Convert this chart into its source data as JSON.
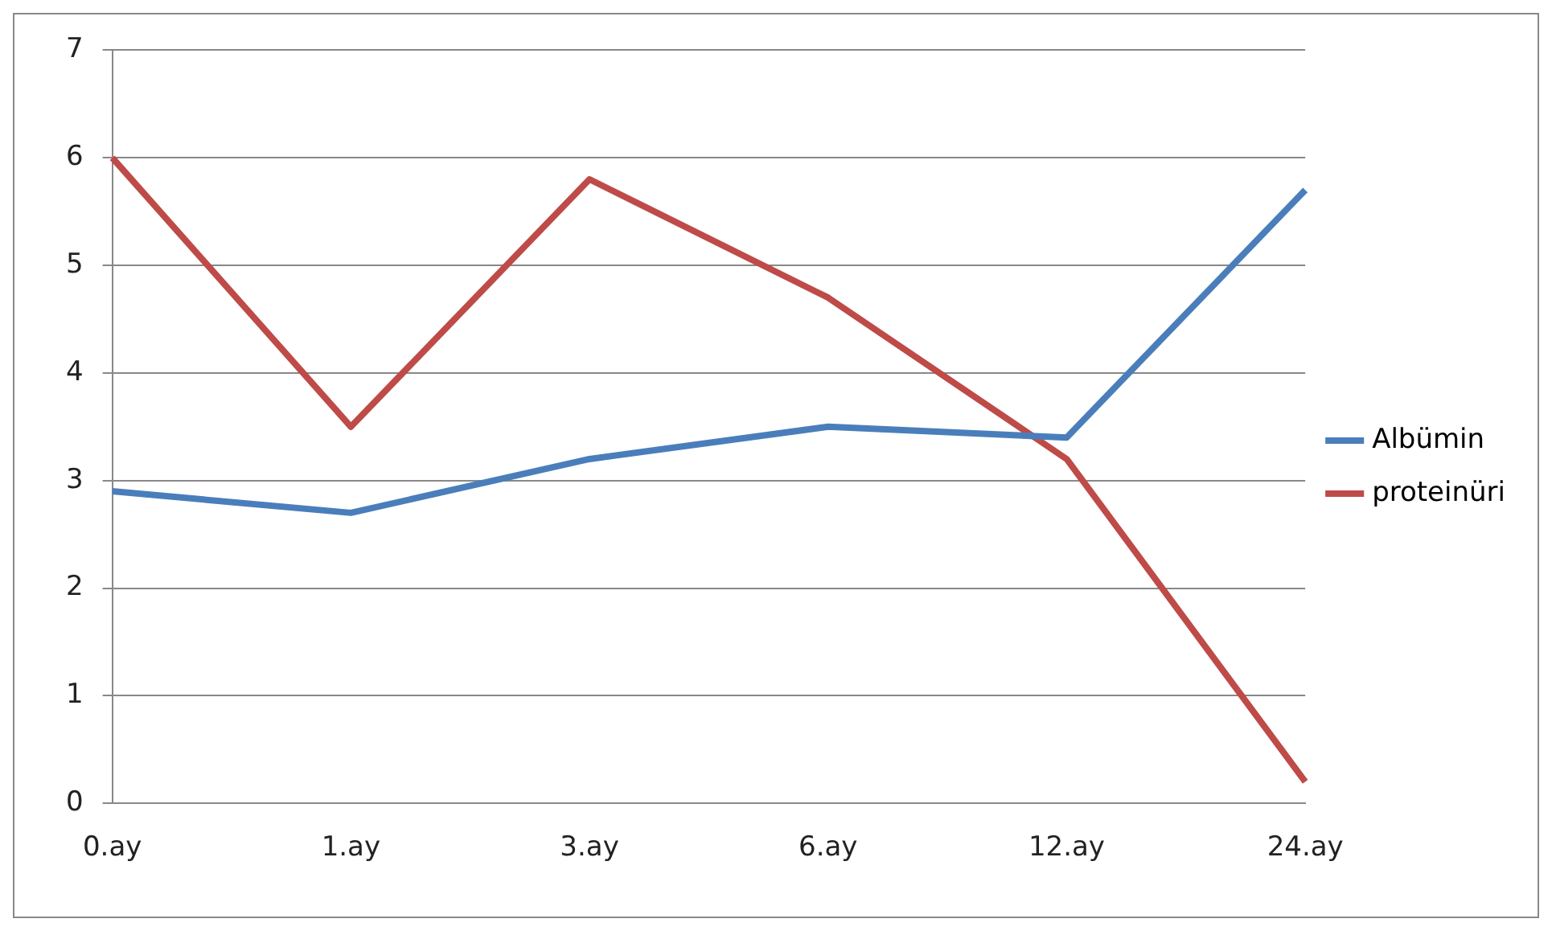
{
  "chart_data": {
    "type": "line",
    "categories": [
      "0.ay",
      "1.ay",
      "3.ay",
      "6.ay",
      "12.ay",
      "24.ay"
    ],
    "series": [
      {
        "name": "Albümin",
        "color": "#4a7ebb",
        "values": [
          2.9,
          2.7,
          3.2,
          3.5,
          3.4,
          5.7
        ]
      },
      {
        "name": "proteinüri",
        "color": "#be4b48",
        "values": [
          6.0,
          3.5,
          5.8,
          4.7,
          3.2,
          0.2
        ]
      }
    ],
    "ylim": [
      0,
      7
    ],
    "yticks": [
      0,
      1,
      2,
      3,
      4,
      5,
      6,
      7
    ],
    "grid": "y",
    "legend": "right",
    "marker": "none",
    "line_style": "solid"
  }
}
